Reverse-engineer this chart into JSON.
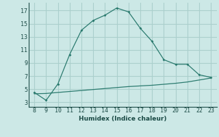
{
  "x": [
    8,
    9,
    10,
    11,
    12,
    13,
    14,
    15,
    16,
    17,
    18,
    19,
    20,
    21,
    22,
    23
  ],
  "y_main": [
    4.5,
    3.3,
    5.8,
    10.3,
    14.0,
    15.5,
    16.3,
    17.4,
    16.8,
    14.3,
    12.3,
    9.5,
    8.8,
    8.8,
    7.2,
    6.8
  ],
  "y_flat": [
    4.3,
    4.35,
    4.5,
    4.65,
    4.8,
    4.95,
    5.1,
    5.25,
    5.4,
    5.5,
    5.6,
    5.75,
    5.9,
    6.1,
    6.4,
    6.7
  ],
  "line_color": "#2a7a6e",
  "bg_color": "#cce8e6",
  "grid_color": "#aacfcc",
  "xlabel": "Humidex (Indice chaleur)",
  "yticks": [
    3,
    5,
    7,
    9,
    11,
    13,
    15,
    17
  ],
  "xticks": [
    8,
    9,
    10,
    11,
    12,
    13,
    14,
    15,
    16,
    17,
    18,
    19,
    20,
    21,
    22,
    23
  ],
  "ylim": [
    2.3,
    18.2
  ],
  "xlim": [
    7.5,
    23.5
  ]
}
